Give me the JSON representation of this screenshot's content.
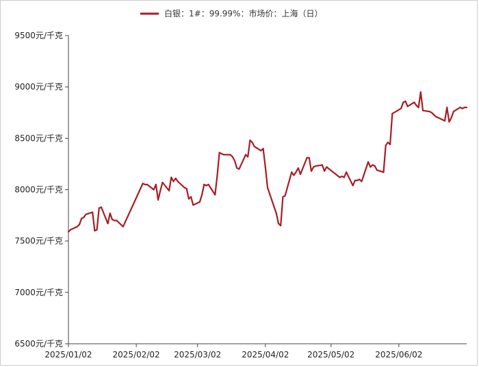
{
  "chart_data": {
    "type": "line",
    "title": "",
    "xlabel": "",
    "ylabel": "",
    "ylim": [
      6500,
      9500
    ],
    "y_ticks": [
      6500,
      7000,
      7500,
      8000,
      8500,
      9000,
      9500
    ],
    "y_tick_labels": [
      "6500元/千克",
      "7000元/千克",
      "7500元/千克",
      "8000元/千克",
      "8500元/千克",
      "9000元/千克",
      "9500元/千克"
    ],
    "x_ticks": [
      "2025-01-02",
      "2025-02-02",
      "2025-03-02",
      "2025-04-02",
      "2025-05-02",
      "2025-06-02"
    ],
    "x_tick_labels": [
      "2025/01/02",
      "2025/02/02",
      "2025/03/02",
      "2025/04/02",
      "2025/05/02",
      "2025/06/02"
    ],
    "x_range": [
      "2025-01-02",
      "2025-07-03"
    ],
    "grid": false,
    "legend_position": "top-center",
    "line_color": "#a81c22",
    "series": [
      {
        "name": "白银：1#：99.99%：市场价：上海（日）",
        "x": [
          "2025-01-02",
          "2025-01-03",
          "2025-01-06",
          "2025-01-07",
          "2025-01-08",
          "2025-01-09",
          "2025-01-10",
          "2025-01-13",
          "2025-01-14",
          "2025-01-15",
          "2025-01-16",
          "2025-01-17",
          "2025-01-20",
          "2025-01-21",
          "2025-01-22",
          "2025-01-23",
          "2025-01-24",
          "2025-01-27",
          "2025-02-05",
          "2025-02-06",
          "2025-02-07",
          "2025-02-10",
          "2025-02-11",
          "2025-02-12",
          "2025-02-13",
          "2025-02-14",
          "2025-02-17",
          "2025-02-18",
          "2025-02-19",
          "2025-02-20",
          "2025-02-21",
          "2025-02-24",
          "2025-02-25",
          "2025-02-26",
          "2025-02-27",
          "2025-02-28",
          "2025-03-03",
          "2025-03-04",
          "2025-03-05",
          "2025-03-06",
          "2025-03-07",
          "2025-03-10",
          "2025-03-11",
          "2025-03-12",
          "2025-03-13",
          "2025-03-14",
          "2025-03-17",
          "2025-03-18",
          "2025-03-19",
          "2025-03-20",
          "2025-03-21",
          "2025-03-24",
          "2025-03-25",
          "2025-03-26",
          "2025-03-27",
          "2025-03-28",
          "2025-03-31",
          "2025-04-01",
          "2025-04-02",
          "2025-04-03",
          "2025-04-07",
          "2025-04-08",
          "2025-04-09",
          "2025-04-10",
          "2025-04-11",
          "2025-04-14",
          "2025-04-15",
          "2025-04-16",
          "2025-04-17",
          "2025-04-18",
          "2025-04-21",
          "2025-04-22",
          "2025-04-23",
          "2025-04-24",
          "2025-04-25",
          "2025-04-28",
          "2025-04-29",
          "2025-04-30",
          "2025-05-06",
          "2025-05-07",
          "2025-05-08",
          "2025-05-09",
          "2025-05-12",
          "2025-05-13",
          "2025-05-14",
          "2025-05-15",
          "2025-05-16",
          "2025-05-19",
          "2025-05-20",
          "2025-05-21",
          "2025-05-22",
          "2025-05-23",
          "2025-05-26",
          "2025-05-27",
          "2025-05-28",
          "2025-05-29",
          "2025-05-30",
          "2025-06-03",
          "2025-06-04",
          "2025-06-05",
          "2025-06-06",
          "2025-06-09",
          "2025-06-10",
          "2025-06-11",
          "2025-06-12",
          "2025-06-13",
          "2025-06-16",
          "2025-06-17",
          "2025-06-18",
          "2025-06-19",
          "2025-06-20",
          "2025-06-23",
          "2025-06-24",
          "2025-06-25",
          "2025-06-26",
          "2025-06-27",
          "2025-06-30",
          "2025-07-01",
          "2025-07-02",
          "2025-07-03"
        ],
        "values": [
          7590,
          7610,
          7640,
          7660,
          7720,
          7730,
          7760,
          7780,
          7600,
          7610,
          7820,
          7830,
          7670,
          7770,
          7710,
          7700,
          7700,
          7640,
          8060,
          8050,
          8050,
          8000,
          8050,
          7900,
          7990,
          8070,
          7990,
          8120,
          8080,
          8110,
          8080,
          8020,
          8010,
          7910,
          7930,
          7850,
          7880,
          7950,
          8050,
          8040,
          8050,
          7950,
          8140,
          8360,
          8350,
          8340,
          8340,
          8320,
          8280,
          8210,
          8200,
          8340,
          8320,
          8480,
          8460,
          8420,
          8380,
          8400,
          8220,
          8020,
          7770,
          7670,
          7650,
          7930,
          7940,
          8170,
          8140,
          8170,
          8210,
          8150,
          8310,
          8310,
          8180,
          8220,
          8230,
          8240,
          8180,
          8220,
          8120,
          8130,
          8120,
          8170,
          8040,
          8090,
          8090,
          8100,
          8080,
          8270,
          8220,
          8240,
          8230,
          8190,
          8170,
          8430,
          8460,
          8440,
          8740,
          8790,
          8850,
          8860,
          8810,
          8850,
          8820,
          8800,
          8950,
          8770,
          8760,
          8750,
          8730,
          8710,
          8700,
          8670,
          8800,
          8660,
          8700,
          8760,
          8800,
          8790,
          8800,
          8800
        ]
      }
    ]
  }
}
